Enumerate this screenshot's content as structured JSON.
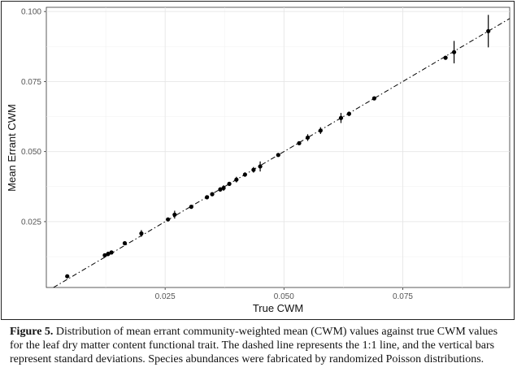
{
  "figure": {
    "caption_label": "Figure 5.",
    "caption_text": " Distribution of mean errant community-weighted mean (CWM) values against true CWM values for the leaf dry matter content functional trait. The dashed line represents the 1:1 line, and the vertical bars represent standard deviations. Species abundances were fabricated by randomized Poisson distributions."
  },
  "chart_data": {
    "type": "scatter",
    "xlabel": "True CWM",
    "ylabel": "Mean Errant CWM",
    "xlim": [
      0.0,
      0.0975
    ],
    "ylim": [
      0.0015,
      0.1015
    ],
    "xticks": [
      0.025,
      0.05,
      0.075
    ],
    "xtick_labels": [
      "0.025",
      "0.050",
      "0.075"
    ],
    "yticks": [
      0.025,
      0.05,
      0.075,
      0.1
    ],
    "ytick_labels": [
      "0.025",
      "0.050",
      "0.075",
      "0.100"
    ],
    "grid": true,
    "reference_line": {
      "type": "1:1",
      "style": "dashdot",
      "color": "#000000"
    },
    "point_color": "#000000",
    "points": [
      {
        "x": 0.0044,
        "y": 0.0055,
        "sd": 0.0003
      },
      {
        "x": 0.0123,
        "y": 0.013,
        "sd": 0.0006
      },
      {
        "x": 0.013,
        "y": 0.0135,
        "sd": 0.0008
      },
      {
        "x": 0.0137,
        "y": 0.014,
        "sd": 0.0006
      },
      {
        "x": 0.0165,
        "y": 0.0173,
        "sd": 0.0004
      },
      {
        "x": 0.02,
        "y": 0.0208,
        "sd": 0.0012
      },
      {
        "x": 0.0256,
        "y": 0.0258,
        "sd": 0.0006
      },
      {
        "x": 0.027,
        "y": 0.0275,
        "sd": 0.0014
      },
      {
        "x": 0.0305,
        "y": 0.0303,
        "sd": 0.0004
      },
      {
        "x": 0.0338,
        "y": 0.0337,
        "sd": 0.0004
      },
      {
        "x": 0.0349,
        "y": 0.0348,
        "sd": 0.0005
      },
      {
        "x": 0.0366,
        "y": 0.0365,
        "sd": 0.0008
      },
      {
        "x": 0.0373,
        "y": 0.037,
        "sd": 0.001
      },
      {
        "x": 0.0385,
        "y": 0.0385,
        "sd": 0.0005
      },
      {
        "x": 0.04,
        "y": 0.04,
        "sd": 0.001
      },
      {
        "x": 0.0418,
        "y": 0.0418,
        "sd": 0.0008
      },
      {
        "x": 0.0436,
        "y": 0.0435,
        "sd": 0.001
      },
      {
        "x": 0.045,
        "y": 0.0447,
        "sd": 0.0018
      },
      {
        "x": 0.0488,
        "y": 0.0488,
        "sd": 0.0004
      },
      {
        "x": 0.0532,
        "y": 0.053,
        "sd": 0.0006
      },
      {
        "x": 0.055,
        "y": 0.055,
        "sd": 0.0012
      },
      {
        "x": 0.0577,
        "y": 0.0575,
        "sd": 0.0012
      },
      {
        "x": 0.062,
        "y": 0.062,
        "sd": 0.0018
      },
      {
        "x": 0.0637,
        "y": 0.0635,
        "sd": 0.0008
      },
      {
        "x": 0.069,
        "y": 0.069,
        "sd": 0.0006
      },
      {
        "x": 0.084,
        "y": 0.0835,
        "sd": 0.0004
      },
      {
        "x": 0.0858,
        "y": 0.0855,
        "sd": 0.004
      },
      {
        "x": 0.093,
        "y": 0.093,
        "sd": 0.0058
      }
    ]
  }
}
